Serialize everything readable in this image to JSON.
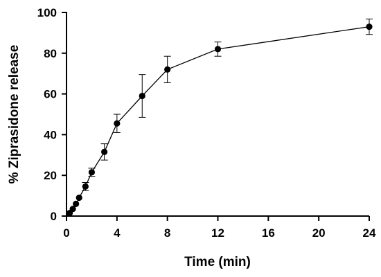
{
  "chart_data": {
    "type": "line",
    "xlabel": "Time (min)",
    "ylabel": "% Ziprasidone release",
    "ylim": [
      0,
      100
    ],
    "yticks": [
      0,
      20,
      40,
      60,
      80,
      100
    ],
    "xticks": [
      0,
      4,
      8,
      12,
      16,
      20,
      24
    ],
    "x_axis_note": "x axis linear in displayed tick label positions (tick 24 placed where 24 would fall after 20 at equal spacing of 4)",
    "grid": false,
    "legend": "none",
    "series": [
      {
        "marker": "circle",
        "color": "#000000",
        "points": [
          {
            "x": 0.25,
            "y": 1.5,
            "err": 0.8
          },
          {
            "x": 0.5,
            "y": 3.5,
            "err": 1.0
          },
          {
            "x": 0.75,
            "y": 6.0,
            "err": 1.0
          },
          {
            "x": 1.0,
            "y": 9.0,
            "err": 1.2
          },
          {
            "x": 1.5,
            "y": 14.5,
            "err": 2.0
          },
          {
            "x": 2.0,
            "y": 21.5,
            "err": 2.0
          },
          {
            "x": 3.0,
            "y": 31.5,
            "err": 4.0
          },
          {
            "x": 4.0,
            "y": 45.5,
            "err": 4.5
          },
          {
            "x": 6.0,
            "y": 59.0,
            "err": 10.5
          },
          {
            "x": 8.0,
            "y": 72.0,
            "err": 6.5
          },
          {
            "x": 12.0,
            "y": 82.0,
            "err": 3.5
          },
          {
            "x": 24.0,
            "y": 93.0,
            "err": 3.8
          }
        ]
      }
    ]
  }
}
